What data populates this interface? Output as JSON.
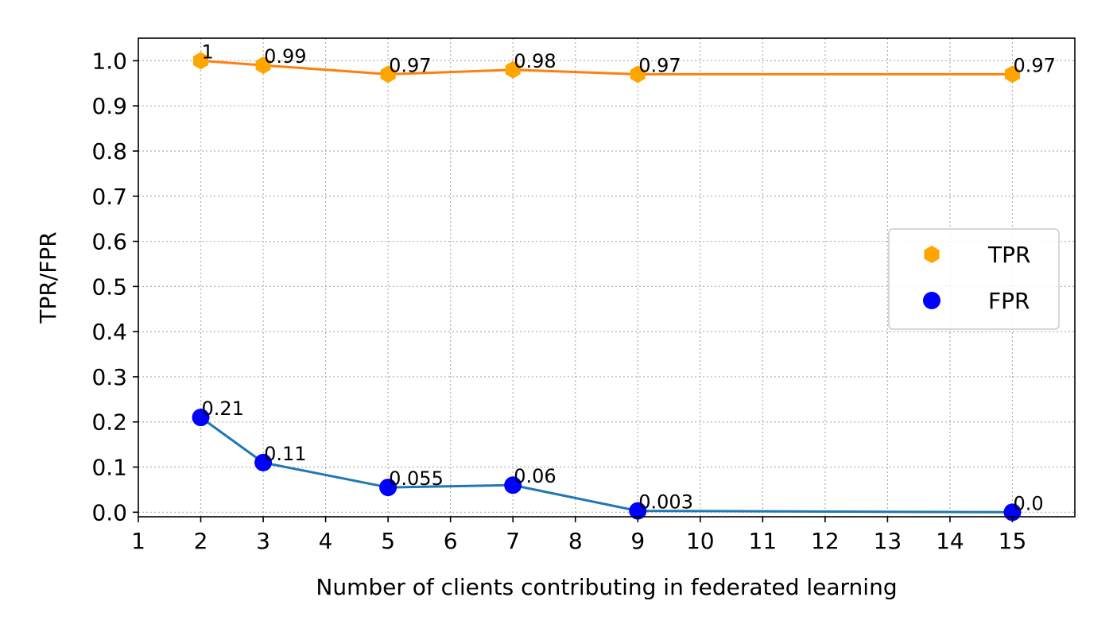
{
  "chart_data": {
    "type": "line",
    "title": "",
    "xlabel": "Number of clients contributing in federated learning",
    "ylabel": "TPR/FPR",
    "xlim": [
      1,
      16
    ],
    "ylim": [
      -0.01,
      1.05
    ],
    "x_ticks": [
      1,
      2,
      3,
      4,
      5,
      6,
      7,
      8,
      9,
      10,
      11,
      12,
      13,
      14,
      15
    ],
    "y_ticks": [
      "0.0",
      "0.1",
      "0.2",
      "0.3",
      "0.4",
      "0.5",
      "0.6",
      "0.7",
      "0.8",
      "0.9",
      "1.0"
    ],
    "grid": true,
    "legend_position": "center-right",
    "series": [
      {
        "name": "TPR",
        "marker": "hexagon",
        "marker_color": "#FFA500",
        "line_color": "#FF7F0E",
        "x": [
          2,
          3,
          5,
          7,
          9,
          15
        ],
        "values": [
          1,
          0.99,
          0.97,
          0.98,
          0.97,
          0.97
        ],
        "labels": [
          "1",
          "0.99",
          "0.97",
          "0.98",
          "0.97",
          "0.97"
        ]
      },
      {
        "name": "FPR",
        "marker": "circle",
        "marker_color": "#0000FF",
        "line_color": "#1F77B4",
        "x": [
          2,
          3,
          5,
          7,
          9,
          15
        ],
        "values": [
          0.21,
          0.11,
          0.055,
          0.06,
          0.003,
          0.0
        ],
        "labels": [
          "0.21",
          "0.11",
          "0.055",
          "0.06",
          "0.003",
          "0.0"
        ]
      }
    ]
  }
}
